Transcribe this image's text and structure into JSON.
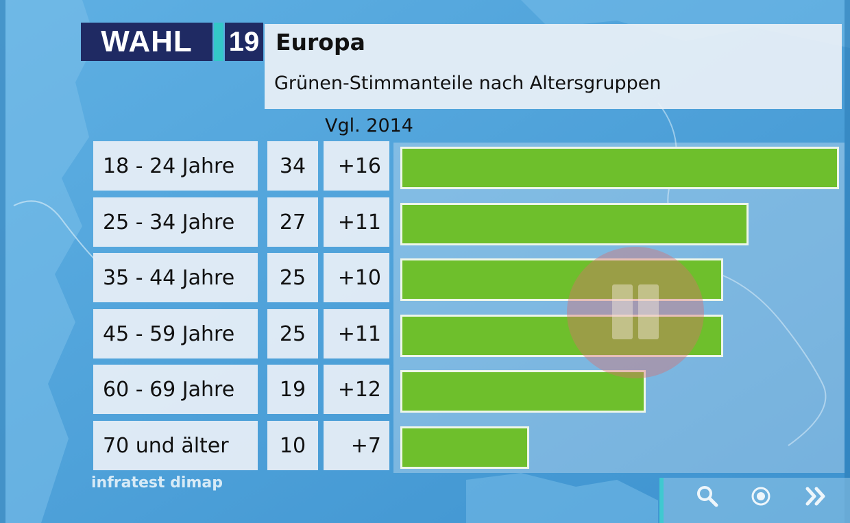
{
  "logo": {
    "wahl": "WAHL",
    "year": "19"
  },
  "header": {
    "title": "Europa",
    "subtitle": "Grünen-Stimmanteile nach Altersgruppen",
    "compare_label": "Vgl. 2014"
  },
  "source": "infratest dimap",
  "colors": {
    "bar": "#6ebf2c",
    "logo_bg": "#1f2a63",
    "accent": "#34c7c8",
    "background": "#4a9ed6"
  },
  "controls": {
    "icons": [
      "search-icon",
      "record-icon",
      "forward-icon"
    ]
  },
  "chart_data": {
    "type": "bar",
    "orientation": "horizontal",
    "title": "Grünen-Stimmanteile nach Altersgruppen",
    "categories": [
      "18 - 24 Jahre",
      "25 - 34 Jahre",
      "35 - 44 Jahre",
      "45 - 59 Jahre",
      "60 - 69 Jahre",
      "70 und älter"
    ],
    "values": [
      34,
      27,
      25,
      25,
      19,
      10
    ],
    "changes": [
      "+16",
      "+11",
      "+10",
      "+11",
      "+12",
      "+7"
    ],
    "xlim": [
      0,
      34
    ],
    "grid": false,
    "legend": "none"
  }
}
